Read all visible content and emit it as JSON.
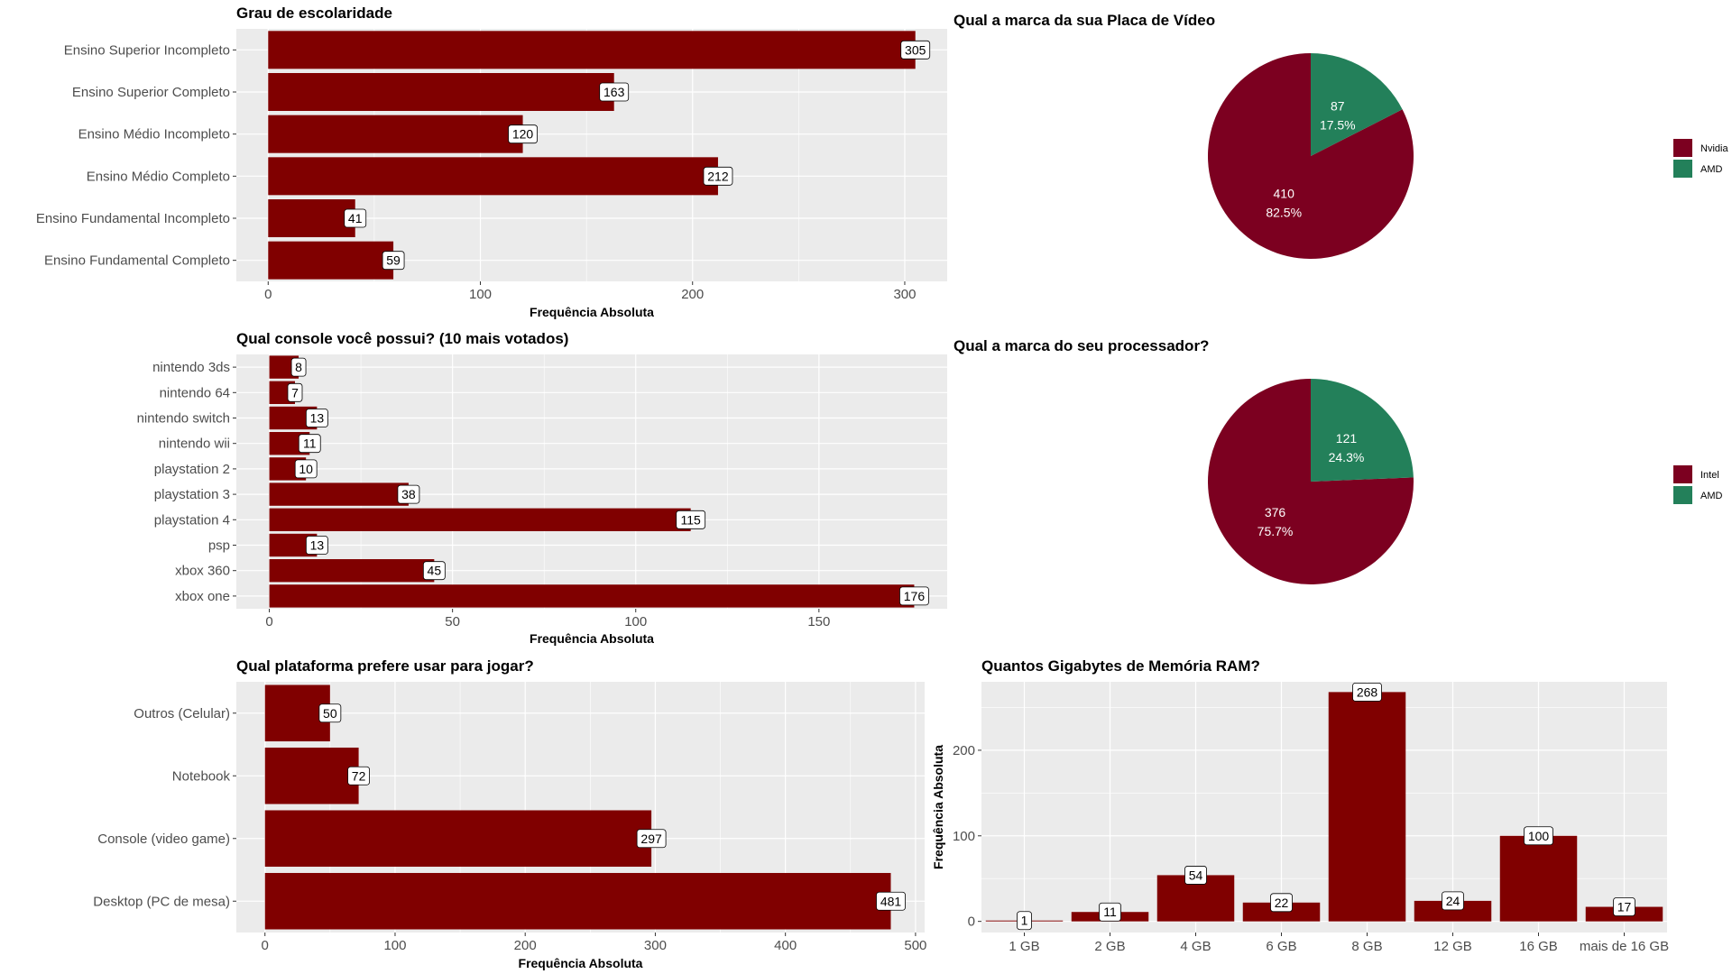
{
  "colors": {
    "bar": "#800000",
    "panel": "#ebebeb",
    "grid": "#ffffff",
    "pie_primary": "#7c0020",
    "pie_secondary": "#23805a"
  },
  "chart_data": [
    {
      "id": "escolaridade",
      "type": "bar",
      "orientation": "horizontal",
      "title": "Grau de escolaridade",
      "xlabel": "Frequência Absoluta",
      "ylabel": "",
      "categories": [
        "Ensino Superior Incompleto",
        "Ensino Superior Completo",
        "Ensino Médio Incompleto",
        "Ensino Médio Completo",
        "Ensino Fundamental Incompleto",
        "Ensino Fundamental Completo"
      ],
      "values": [
        305,
        163,
        120,
        212,
        41,
        59
      ],
      "xlim": [
        -15,
        320
      ],
      "ticks": [
        0,
        100,
        200,
        300
      ],
      "grid": true
    },
    {
      "id": "placa_video",
      "type": "pie",
      "title": "Qual a marca da sua Placa de Vídeo",
      "slices": [
        {
          "label": "Nvidia",
          "value": 410,
          "percent": "82.5%"
        },
        {
          "label": "AMD",
          "value": 87,
          "percent": "17.5%"
        }
      ],
      "legend": "right"
    },
    {
      "id": "console",
      "type": "bar",
      "orientation": "horizontal",
      "title": "Qual console você possui? (10 mais votados)",
      "xlabel": "Frequência Absoluta",
      "ylabel": "",
      "categories": [
        "nintendo 3ds",
        "nintendo 64",
        "nintendo switch",
        "nintendo wii",
        "playstation 2",
        "playstation 3",
        "playstation 4",
        "psp",
        "xbox 360",
        "xbox one"
      ],
      "values": [
        8,
        7,
        13,
        11,
        10,
        38,
        115,
        13,
        45,
        176
      ],
      "xlim": [
        -9,
        185
      ],
      "ticks": [
        0,
        50,
        100,
        150
      ],
      "grid": true
    },
    {
      "id": "processador",
      "type": "pie",
      "title": "Qual a marca do seu processador?",
      "slices": [
        {
          "label": "Intel",
          "value": 376,
          "percent": "75.7%"
        },
        {
          "label": "AMD",
          "value": 121,
          "percent": "24.3%"
        }
      ],
      "legend": "right"
    },
    {
      "id": "plataforma",
      "type": "bar",
      "orientation": "horizontal",
      "title": "Qual plataforma prefere usar para jogar?",
      "xlabel": "Frequência Absoluta",
      "ylabel": "",
      "categories": [
        "Outros (Celular)",
        "Notebook",
        "Console (video game)",
        "Desktop (PC de mesa)"
      ],
      "values": [
        50,
        72,
        297,
        481
      ],
      "xlim": [
        -22,
        507
      ],
      "ticks": [
        0,
        100,
        200,
        300,
        400,
        500
      ],
      "grid": true
    },
    {
      "id": "memoria",
      "type": "bar",
      "orientation": "vertical",
      "title": "Quantos Gigabytes de Memória RAM?",
      "xlabel": "",
      "ylabel": "Frequência Absoluta",
      "categories": [
        "1 GB",
        "2 GB",
        "4 GB",
        "6 GB",
        "8 GB",
        "12 GB",
        "16 GB",
        "mais de 16 GB"
      ],
      "values": [
        1,
        11,
        54,
        22,
        268,
        24,
        100,
        17
      ],
      "ylim": [
        -13,
        280
      ],
      "ticks": [
        0,
        100,
        200
      ],
      "grid": true
    }
  ]
}
